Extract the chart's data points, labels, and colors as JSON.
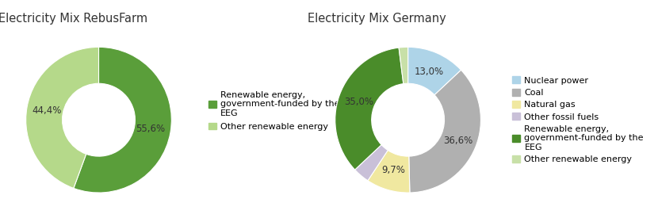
{
  "chart1": {
    "title": "Electricity Mix RebusFarm",
    "values": [
      55.6,
      44.4
    ],
    "labels": [
      "55,6%",
      "44,4%"
    ],
    "colors": [
      "#5a9e3a",
      "#b5d98a"
    ],
    "label_radii": [
      0.72,
      0.72
    ],
    "legend_labels": [
      "Renewable energy,\ngovernment-funded by the\nEEG",
      "Other renewable energy"
    ]
  },
  "chart2": {
    "title": "Electricity Mix Germany",
    "values": [
      13.0,
      36.6,
      9.7,
      3.7,
      35.0,
      2.0
    ],
    "labels": [
      "13,0%",
      "36,6%",
      "9,7%",
      "",
      "35,0%",
      ""
    ],
    "colors": [
      "#aed4e8",
      "#b0b0b0",
      "#f0e8a0",
      "#c9c0d8",
      "#4a8c2a",
      "#c8e0a8"
    ],
    "label_radii": [
      0.72,
      0.75,
      0.72,
      0.0,
      0.72,
      0.0
    ],
    "legend_labels": [
      "Nuclear power",
      "Coal",
      "Natural gas",
      "Other fossil fuels",
      "Renewable energy,\ngovernment-funded by the\nEEG",
      "Other renewable energy"
    ]
  },
  "background_color": "#ffffff",
  "title_fontsize": 10.5,
  "label_fontsize": 8.5,
  "legend_fontsize": 8.0,
  "donut_width": 0.5
}
